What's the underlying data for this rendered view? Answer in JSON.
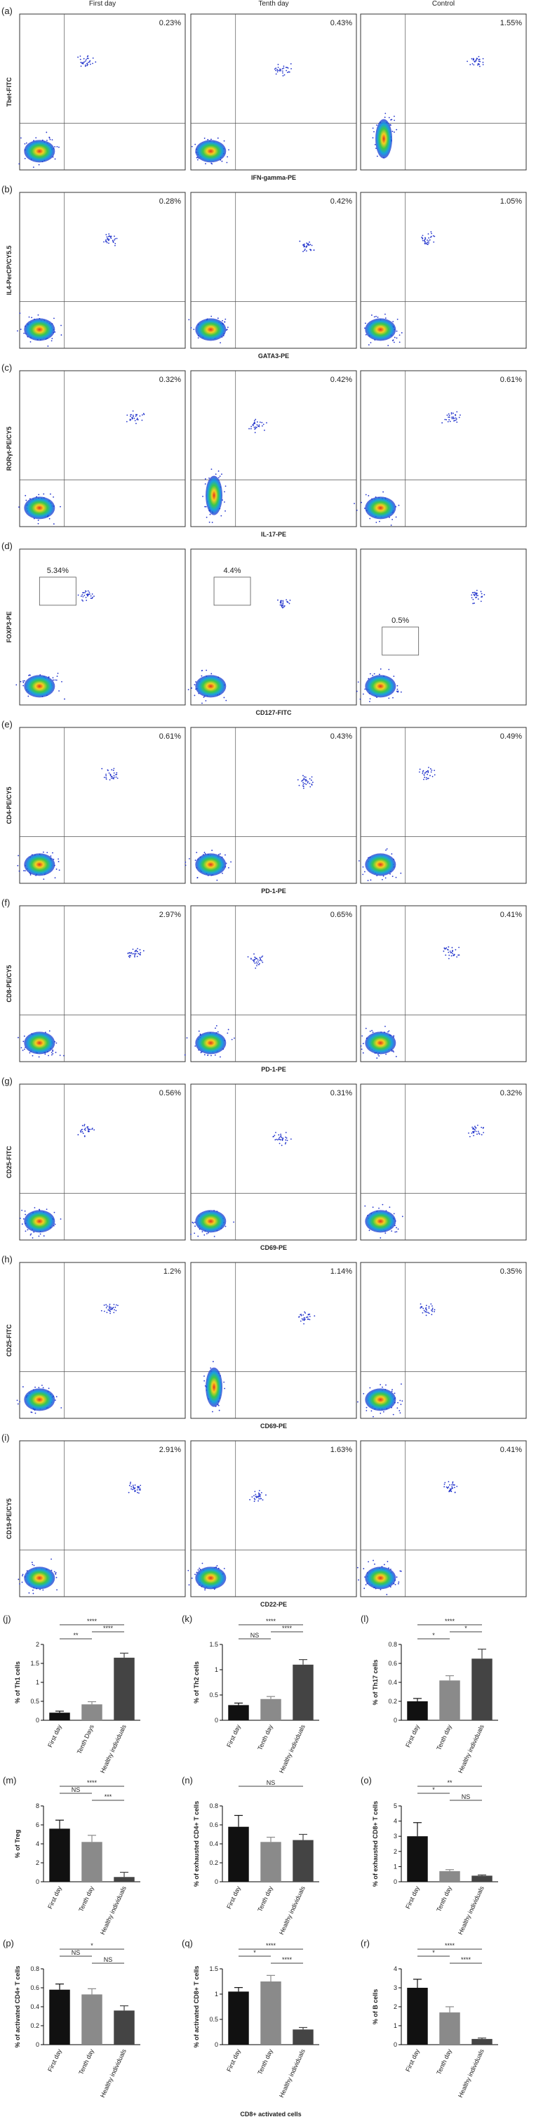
{
  "figure": {
    "column_headers": [
      "First day",
      "Tenth day",
      "Control"
    ],
    "flow_rows": [
      {
        "label": "(a)",
        "y_label": "Tbet-FITC",
        "x_label": "IFN-gamma-PE",
        "percentages": [
          "0.23%",
          "0.43%",
          "1.55%"
        ]
      },
      {
        "label": "(b)",
        "y_label": "IL4-PerCP/CY5.5",
        "x_label": "GATA3-PE",
        "percentages": [
          "0.28%",
          "0.42%",
          "1.05%"
        ]
      },
      {
        "label": "(c)",
        "y_label": "RORγt-PE/CY5",
        "x_label": "IL-17-PE",
        "percentages": [
          "0.32%",
          "0.42%",
          "0.61%"
        ]
      },
      {
        "label": "(d)",
        "y_label": "FOXP3-PE",
        "x_label": "CD127-FITC",
        "percentages": [
          "5.34%",
          "4.4%",
          "0.5%"
        ]
      },
      {
        "label": "(e)",
        "y_label": "CD4-PE/CY5",
        "x_label": "PD-1-PE",
        "percentages": [
          "0.61%",
          "0.43%",
          "0.49%"
        ]
      },
      {
        "label": "(f)",
        "y_label": "CD8-PE/CY5",
        "x_label": "PD-1-PE",
        "percentages": [
          "2.97%",
          "0.65%",
          "0.41%"
        ]
      },
      {
        "label": "(g)",
        "y_label": "CD25-FITC",
        "x_label": "CD69-PE",
        "percentages": [
          "0.56%",
          "0.31%",
          "0.32%"
        ]
      },
      {
        "label": "(h)",
        "y_label": "CD25-FITC",
        "x_label": "CD69-PE",
        "percentages": [
          "1.2%",
          "1.14%",
          "0.35%"
        ]
      },
      {
        "label": "(i)",
        "y_label": "CD19-PE/CY5",
        "x_label": "CD22-PE",
        "percentages": [
          "2.91%",
          "1.63%",
          "0.41%"
        ]
      }
    ]
  },
  "chart_data": [
    {
      "type": "bar",
      "panel_label": "(j)",
      "y_label": "% of Th1 cells",
      "categories": [
        "First day",
        "Tenth Days",
        "Healthy individuals"
      ],
      "values": [
        0.2,
        0.42,
        1.65
      ],
      "errors": [
        0.04,
        0.07,
        0.12
      ],
      "colors": [
        "#111111",
        "#8a8a8a",
        "#444444"
      ],
      "ylim": [
        0,
        2
      ],
      "yticks": [
        0,
        0.5,
        1,
        1.5,
        2
      ],
      "significance": [
        {
          "from": 0,
          "to": 2,
          "label": "****"
        },
        {
          "from": 1,
          "to": 2,
          "label": "****"
        },
        {
          "from": 0,
          "to": 1,
          "label": "**"
        }
      ]
    },
    {
      "type": "bar",
      "panel_label": "(k)",
      "y_label": "% of Th2 cells",
      "categories": [
        "First day",
        "Tenth day",
        "Healthy individuals"
      ],
      "values": [
        0.3,
        0.42,
        1.1
      ],
      "errors": [
        0.04,
        0.05,
        0.1
      ],
      "colors": [
        "#111111",
        "#8a8a8a",
        "#444444"
      ],
      "ylim": [
        0,
        1.5
      ],
      "yticks": [
        0,
        0.5,
        1,
        1.5
      ],
      "significance": [
        {
          "from": 0,
          "to": 2,
          "label": "****"
        },
        {
          "from": 1,
          "to": 2,
          "label": "****"
        },
        {
          "from": 0,
          "to": 1,
          "label": "NS"
        }
      ]
    },
    {
      "type": "bar",
      "panel_label": "(l)",
      "y_label": "% of Th17 cells",
      "categories": [
        "First day",
        "Tenth day",
        "Healthy individuals"
      ],
      "values": [
        0.2,
        0.42,
        0.65
      ],
      "errors": [
        0.03,
        0.05,
        0.1
      ],
      "colors": [
        "#111111",
        "#8a8a8a",
        "#444444"
      ],
      "ylim": [
        0,
        0.8
      ],
      "yticks": [
        0,
        0.2,
        0.4,
        0.6,
        0.8
      ],
      "significance": [
        {
          "from": 0,
          "to": 2,
          "label": "****"
        },
        {
          "from": 1,
          "to": 2,
          "label": "*"
        },
        {
          "from": 0,
          "to": 1,
          "label": "*"
        }
      ]
    },
    {
      "type": "bar",
      "panel_label": "(m)",
      "y_label": "% of Treg",
      "categories": [
        "First day",
        "Tenth day",
        "Healthy individuals"
      ],
      "values": [
        5.6,
        4.2,
        0.5
      ],
      "errors": [
        0.9,
        0.7,
        0.5
      ],
      "colors": [
        "#111111",
        "#8a8a8a",
        "#444444"
      ],
      "ylim": [
        0,
        8
      ],
      "yticks": [
        0,
        2,
        4,
        6,
        8
      ],
      "significance": [
        {
          "from": 0,
          "to": 2,
          "label": "****"
        },
        {
          "from": 0,
          "to": 1,
          "label": "NS"
        },
        {
          "from": 1,
          "to": 2,
          "label": "***"
        }
      ]
    },
    {
      "type": "bar",
      "panel_label": "(n)",
      "y_label": "% of exhausted CD4+ T cells",
      "categories": [
        "First day",
        "Tenth day",
        "Healthy individuals"
      ],
      "values": [
        0.58,
        0.42,
        0.44
      ],
      "errors": [
        0.12,
        0.05,
        0.06
      ],
      "colors": [
        "#111111",
        "#8a8a8a",
        "#444444"
      ],
      "ylim": [
        0,
        0.8
      ],
      "yticks": [
        0,
        0.2,
        0.4,
        0.6,
        0.8
      ],
      "significance": [
        {
          "from": 0,
          "to": 2,
          "label": "NS"
        }
      ]
    },
    {
      "type": "bar",
      "panel_label": "(o)",
      "y_label": "% of exhausted CD8+ T cells",
      "categories": [
        "First day",
        "Tenth day",
        "Healthy individuals"
      ],
      "values": [
        3.0,
        0.7,
        0.4
      ],
      "errors": [
        0.9,
        0.1,
        0.05
      ],
      "colors": [
        "#111111",
        "#8a8a8a",
        "#444444"
      ],
      "ylim": [
        0,
        5
      ],
      "yticks": [
        0,
        1,
        2,
        3,
        4,
        5
      ],
      "significance": [
        {
          "from": 0,
          "to": 2,
          "label": "**"
        },
        {
          "from": 0,
          "to": 1,
          "label": "*"
        },
        {
          "from": 1,
          "to": 2,
          "label": "NS"
        }
      ]
    },
    {
      "type": "bar",
      "panel_label": "(p)",
      "y_label": "% of activated CD4+ T cells",
      "categories": [
        "First day",
        "Tenth day",
        "Healthy individuals"
      ],
      "values": [
        0.58,
        0.53,
        0.36
      ],
      "errors": [
        0.06,
        0.06,
        0.05
      ],
      "colors": [
        "#111111",
        "#8a8a8a",
        "#444444"
      ],
      "ylim": [
        0,
        0.8
      ],
      "yticks": [
        0,
        0.2,
        0.4,
        0.6,
        0.8
      ],
      "significance": [
        {
          "from": 0,
          "to": 2,
          "label": "*"
        },
        {
          "from": 0,
          "to": 1,
          "label": "NS"
        },
        {
          "from": 1,
          "to": 2,
          "label": "NS"
        }
      ]
    },
    {
      "type": "bar",
      "panel_label": "(q)",
      "y_label": "% of activated CD8+ T cells",
      "x_label": "CD8+ activated cells",
      "categories": [
        "First day",
        "Tenth day",
        "Healthy individuals"
      ],
      "values": [
        1.05,
        1.25,
        0.3
      ],
      "errors": [
        0.08,
        0.12,
        0.04
      ],
      "colors": [
        "#111111",
        "#8a8a8a",
        "#444444"
      ],
      "ylim": [
        0,
        1.5
      ],
      "yticks": [
        0,
        0.5,
        1,
        1.5
      ],
      "significance": [
        {
          "from": 0,
          "to": 2,
          "label": "****"
        },
        {
          "from": 0,
          "to": 1,
          "label": "*"
        },
        {
          "from": 1,
          "to": 2,
          "label": "****"
        }
      ]
    },
    {
      "type": "bar",
      "panel_label": "(r)",
      "y_label": "% of B cells",
      "categories": [
        "First day",
        "Tenth day",
        "Healthy individuals"
      ],
      "values": [
        3.0,
        1.7,
        0.3
      ],
      "errors": [
        0.45,
        0.3,
        0.05
      ],
      "colors": [
        "#111111",
        "#8a8a8a",
        "#444444"
      ],
      "ylim": [
        0,
        4
      ],
      "yticks": [
        0,
        1,
        2,
        3,
        4
      ],
      "significance": [
        {
          "from": 0,
          "to": 2,
          "label": "****"
        },
        {
          "from": 0,
          "to": 1,
          "label": "*"
        },
        {
          "from": 1,
          "to": 2,
          "label": "****"
        }
      ]
    }
  ]
}
